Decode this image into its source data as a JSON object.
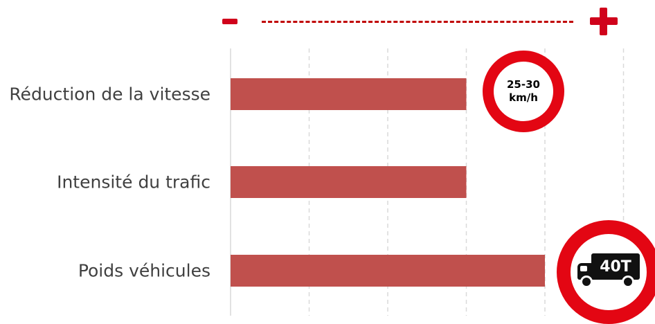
{
  "chart_data": {
    "type": "bar",
    "orientation": "horizontal",
    "categories": [
      "Réduction de la vitesse",
      "Intensité du trafic",
      "Poids véhicules"
    ],
    "values": [
      3,
      3,
      4
    ],
    "xlim": [
      0,
      5
    ],
    "grid": "vertical dashed",
    "bar_color": "#c0504d",
    "scale_indicator": {
      "low": "-",
      "high": "+"
    }
  },
  "signs": {
    "speed_limit_text": [
      "25-30",
      "km/h"
    ],
    "weight_limit_text": "40T",
    "border_color": "#e30613"
  }
}
